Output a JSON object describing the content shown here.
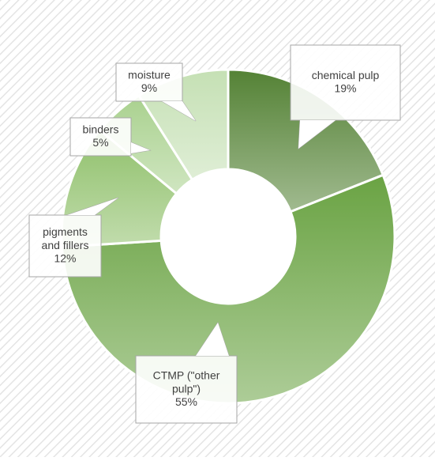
{
  "chart_data": {
    "type": "donut",
    "categories": [
      "chemical pulp",
      "CTMP (\"other pulp\")",
      "pigments and fillers",
      "binders",
      "moisture"
    ],
    "values": [
      19,
      55,
      12,
      5,
      9
    ],
    "value_labels": [
      "19%",
      "55%",
      "12%",
      "5%",
      "9%"
    ],
    "colors": [
      "#548235",
      "#6aa343",
      "#8fc06a",
      "#a9d18e",
      "#c5e0b4"
    ]
  }
}
